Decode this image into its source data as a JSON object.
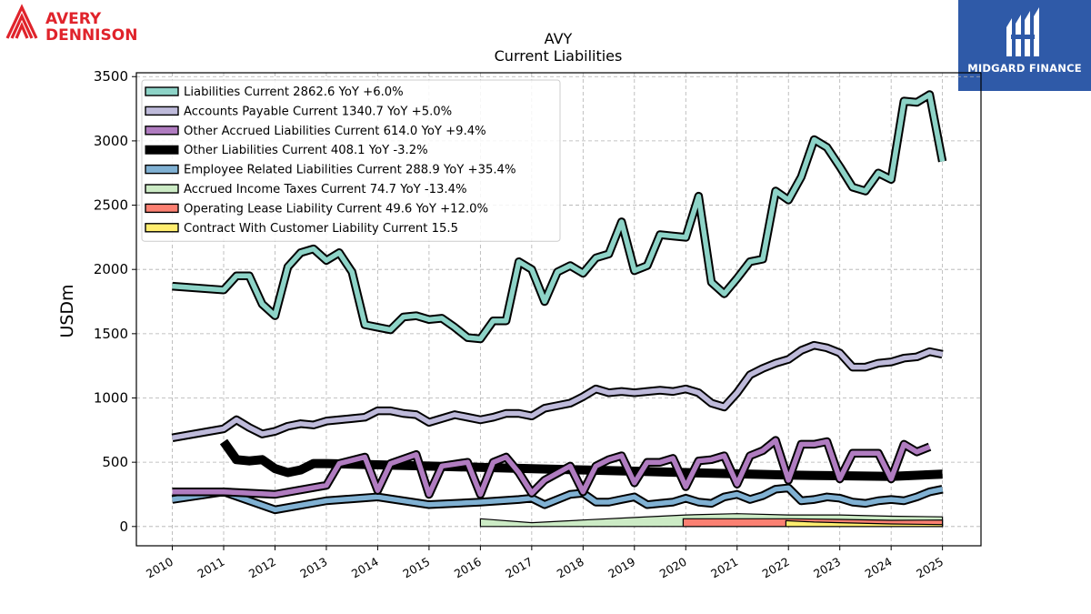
{
  "branding": {
    "left_logo_text_line1": "AVERY",
    "left_logo_text_line2": "DENNISON",
    "right_logo_text": "MIDGARD FINANCE",
    "left_logo_color": "#e0232b",
    "right_logo_bg": "#2f5aa8"
  },
  "chart_data": {
    "type": "line",
    "title": "AVY",
    "subtitle": "Current  Liabilities",
    "ylabel": "USDm",
    "xlabel": "",
    "ylim": [
      -150,
      3530
    ],
    "xlim": [
      2009.3,
      2025.75
    ],
    "yticks": [
      0,
      500,
      1000,
      1500,
      2000,
      2500,
      3000,
      3500
    ],
    "xticks": [
      2010,
      2011,
      2012,
      2013,
      2014,
      2015,
      2016,
      2017,
      2018,
      2019,
      2020,
      2021,
      2022,
      2023,
      2024,
      2025
    ],
    "grid": true,
    "legend_position": "top-left",
    "series": [
      {
        "name": "Liabilities Current  2862.6 YoY +6.0%",
        "color": "#8dd3c7",
        "style": "outlined",
        "width": 7,
        "x": [
          2010.0,
          2011.0,
          2011.25,
          2011.5,
          2011.75,
          2012.0,
          2012.25,
          2012.5,
          2012.75,
          2013.0,
          2013.25,
          2013.5,
          2013.75,
          2014.0,
          2014.25,
          2014.5,
          2014.75,
          2015.0,
          2015.25,
          2015.5,
          2015.75,
          2016.0,
          2016.25,
          2016.5,
          2016.75,
          2017.0,
          2017.25,
          2017.5,
          2017.75,
          2018.0,
          2018.25,
          2018.5,
          2018.75,
          2019.0,
          2019.25,
          2019.5,
          2019.75,
          2020.0,
          2020.25,
          2020.5,
          2020.75,
          2021.0,
          2021.25,
          2021.5,
          2021.75,
          2022.0,
          2022.25,
          2022.5,
          2022.75,
          2023.0,
          2023.25,
          2023.5,
          2023.75,
          2024.0,
          2024.25,
          2024.5,
          2024.75,
          2025.0
        ],
        "values": [
          1870,
          1840,
          1950,
          1950,
          1730,
          1640,
          2020,
          2130,
          2160,
          2070,
          2130,
          1980,
          1570,
          1550,
          1530,
          1630,
          1640,
          1610,
          1620,
          1550,
          1470,
          1460,
          1600,
          1600,
          2060,
          2000,
          1750,
          1980,
          2030,
          1970,
          2090,
          2120,
          2370,
          1990,
          2030,
          2270,
          2260,
          2250,
          2570,
          1900,
          1810,
          1930,
          2060,
          2080,
          2610,
          2540,
          2720,
          3010,
          2950,
          2800,
          2640,
          2610,
          2750,
          2700,
          3310,
          3300,
          3360,
          2840
        ]
      },
      {
        "name": "Accounts Payable Current  1340.7 YoY +5.0%",
        "color": "#bebada",
        "style": "outlined",
        "width": 7,
        "x": [
          2010.0,
          2011.0,
          2011.25,
          2011.5,
          2011.75,
          2012.0,
          2012.25,
          2012.5,
          2012.75,
          2013.0,
          2013.25,
          2013.5,
          2013.75,
          2014.0,
          2014.25,
          2014.5,
          2014.75,
          2015.0,
          2015.25,
          2015.5,
          2015.75,
          2016.0,
          2016.25,
          2016.5,
          2016.75,
          2017.0,
          2017.25,
          2017.5,
          2017.75,
          2018.0,
          2018.25,
          2018.5,
          2018.75,
          2019.0,
          2019.25,
          2019.5,
          2019.75,
          2020.0,
          2020.25,
          2020.5,
          2020.75,
          2021.0,
          2021.25,
          2021.5,
          2021.75,
          2022.0,
          2022.25,
          2022.5,
          2022.75,
          2023.0,
          2023.25,
          2023.5,
          2023.75,
          2024.0,
          2024.25,
          2024.5,
          2024.75,
          2025.0
        ],
        "values": [
          690,
          760,
          830,
          770,
          720,
          740,
          780,
          800,
          790,
          820,
          830,
          840,
          850,
          900,
          900,
          880,
          870,
          810,
          840,
          870,
          850,
          830,
          850,
          880,
          880,
          860,
          920,
          940,
          960,
          1010,
          1070,
          1040,
          1050,
          1040,
          1050,
          1060,
          1050,
          1070,
          1040,
          960,
          930,
          1040,
          1180,
          1230,
          1270,
          1300,
          1370,
          1410,
          1390,
          1350,
          1240,
          1240,
          1270,
          1280,
          1310,
          1320,
          1360,
          1340
        ]
      },
      {
        "name": "Other Accrued Liabilities Current  614.0 YoY +9.4%",
        "color": "#b07cc0",
        "style": "outlined",
        "width": 7,
        "x": [
          2010.0,
          2011.0,
          2012.0,
          2013.0,
          2013.25,
          2013.75,
          2014.0,
          2014.25,
          2014.75,
          2015.0,
          2015.25,
          2015.75,
          2016.0,
          2016.25,
          2016.5,
          2016.75,
          2017.0,
          2017.25,
          2017.75,
          2018.0,
          2018.25,
          2018.5,
          2018.75,
          2019.0,
          2019.25,
          2019.5,
          2019.75,
          2020.0,
          2020.25,
          2020.5,
          2020.75,
          2021.0,
          2021.25,
          2021.5,
          2021.75,
          2022.0,
          2022.25,
          2022.5,
          2022.75,
          2023.0,
          2023.25,
          2023.5,
          2023.75,
          2024.0,
          2024.25,
          2024.5,
          2024.75
        ],
        "values": [
          270,
          270,
          250,
          320,
          490,
          540,
          280,
          490,
          560,
          250,
          470,
          500,
          250,
          500,
          540,
          420,
          260,
          360,
          470,
          270,
          470,
          520,
          550,
          340,
          500,
          500,
          530,
          310,
          510,
          520,
          550,
          330,
          550,
          590,
          670,
          360,
          640,
          640,
          660,
          370,
          570,
          570,
          570,
          370,
          640,
          580,
          620
        ]
      },
      {
        "name": "Other Liabilities Current  408.1 YoY -3.2%",
        "color": "#000000",
        "style": "solid",
        "width": 10,
        "x": [
          2011.0,
          2011.25,
          2011.5,
          2011.75,
          2012.0,
          2012.25,
          2012.5,
          2012.75,
          2013.0,
          2014.0,
          2015.0,
          2016.0,
          2017.0,
          2018.0,
          2019.0,
          2020.0,
          2021.0,
          2022.0,
          2023.0,
          2024.0,
          2025.0
        ],
        "values": [
          660,
          520,
          510,
          520,
          450,
          420,
          440,
          490,
          490,
          480,
          470,
          460,
          450,
          440,
          430,
          420,
          410,
          400,
          395,
          390,
          408
        ]
      },
      {
        "name": "Employee Related Liabilities Current  288.9 YoY +35.4%",
        "color": "#80b1d3",
        "style": "outlined",
        "width": 7,
        "x": [
          2010.0,
          2011.0,
          2012.0,
          2013.0,
          2014.0,
          2015.0,
          2016.0,
          2016.75,
          2017.0,
          2017.25,
          2017.75,
          2018.0,
          2018.25,
          2018.5,
          2018.75,
          2019.0,
          2019.25,
          2019.5,
          2019.75,
          2020.0,
          2020.25,
          2020.5,
          2020.75,
          2021.0,
          2021.25,
          2021.5,
          2021.75,
          2022.0,
          2022.25,
          2022.5,
          2022.75,
          2023.0,
          2023.25,
          2023.5,
          2023.75,
          2024.0,
          2024.25,
          2024.5,
          2024.75,
          2025.0
        ],
        "values": [
          210,
          270,
          130,
          200,
          230,
          170,
          190,
          210,
          220,
          170,
          250,
          260,
          190,
          190,
          210,
          230,
          170,
          180,
          190,
          220,
          190,
          180,
          230,
          250,
          210,
          240,
          290,
          300,
          200,
          210,
          230,
          220,
          190,
          180,
          200,
          210,
          200,
          230,
          270,
          290
        ]
      },
      {
        "name": "Accrued Income Taxes Current  74.7 YoY -13.4%",
        "color": "#ccebc5",
        "style": "area",
        "x": [
          2016.0,
          2017.0,
          2018.0,
          2019.0,
          2020.0,
          2021.0,
          2022.0,
          2023.0,
          2024.0,
          2025.0
        ],
        "values": [
          60,
          30,
          50,
          70,
          90,
          100,
          90,
          90,
          80,
          75
        ]
      },
      {
        "name": "Operating Lease Liability Current  49.6 YoY +12.0%",
        "color": "#fb8072",
        "style": "area",
        "x": [
          2019.95,
          2021.0,
          2022.0,
          2023.0,
          2024.0,
          2025.0
        ],
        "values": [
          60,
          60,
          60,
          55,
          48,
          50
        ]
      },
      {
        "name": "Contract With Customer Liability Current  15.5",
        "color": "#ffed6f",
        "style": "area",
        "x": [
          2021.95,
          2022.5,
          2023.0,
          2024.0,
          2025.0
        ],
        "values": [
          45,
          35,
          30,
          20,
          15
        ]
      }
    ]
  }
}
